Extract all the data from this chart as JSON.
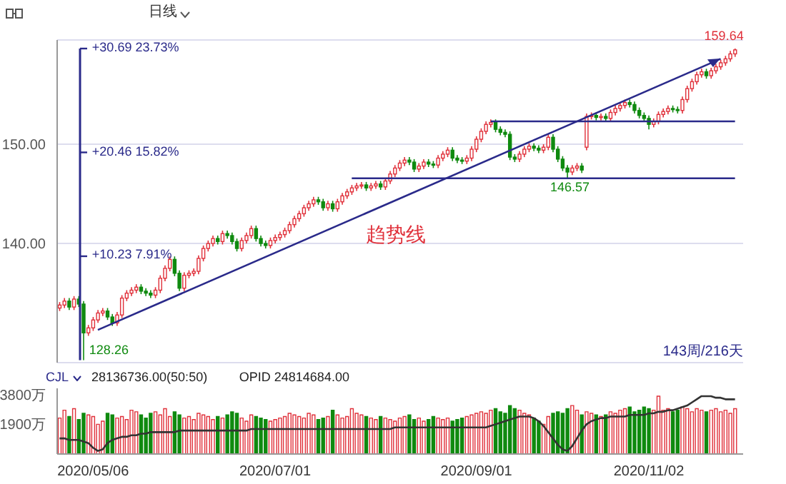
{
  "chart_data": [
    {
      "type": "candlestick",
      "title": "日线",
      "categories": [
        null,
        null,
        null,
        null,
        null,
        null,
        null,
        "2020/05/06",
        null,
        null,
        null,
        null,
        null,
        null,
        null,
        null,
        null,
        null,
        null,
        null,
        null,
        null,
        null,
        null,
        null,
        null,
        null,
        null,
        null,
        null,
        null,
        null,
        null,
        null,
        null,
        null,
        null,
        null,
        null,
        null,
        null,
        null,
        null,
        null,
        null,
        "2020/07/01",
        null,
        null,
        null,
        null,
        null,
        null,
        null,
        null,
        null,
        null,
        null,
        null,
        null,
        null,
        null,
        null,
        null,
        null,
        null,
        null,
        null,
        null,
        null,
        null,
        null,
        null,
        null,
        null,
        null,
        null,
        null,
        null,
        null,
        null,
        null,
        null,
        null,
        null,
        null,
        null,
        null,
        "2020/09/01",
        null,
        null,
        null,
        null,
        null,
        null,
        null,
        null,
        null,
        null,
        null,
        null,
        null,
        null,
        null,
        null,
        null,
        null,
        null,
        null,
        null,
        null,
        null,
        null,
        null,
        null,
        null,
        null,
        null,
        null,
        null,
        null,
        null,
        null,
        null,
        "2020/11/02",
        null,
        null,
        null,
        null,
        null,
        null,
        null,
        null,
        null,
        null,
        null,
        null,
        null,
        null,
        null,
        null,
        null,
        null
      ],
      "ohlc": [
        [
          133.5,
          134.1,
          133.2,
          133.8
        ],
        [
          133.8,
          134.5,
          133.5,
          134.2
        ],
        [
          134.2,
          134.5,
          133.3,
          133.6
        ],
        [
          133.6,
          134.7,
          133.3,
          134.4
        ],
        [
          134.4,
          134.7,
          133.6,
          133.9
        ],
        [
          133.9,
          134.2,
          128.26,
          131.0
        ],
        [
          131.0,
          131.8,
          130.7,
          131.5
        ],
        [
          131.5,
          132.6,
          131.2,
          132.3
        ],
        [
          132.3,
          133.3,
          132.0,
          133.0
        ],
        [
          133.0,
          133.5,
          132.7,
          133.2
        ],
        [
          133.2,
          133.5,
          132.3,
          132.6
        ],
        [
          132.6,
          132.9,
          131.7,
          132.0
        ],
        [
          132.0,
          133.1,
          131.7,
          132.8
        ],
        [
          132.8,
          134.8,
          132.5,
          134.5
        ],
        [
          134.5,
          135.3,
          134.2,
          135.0
        ],
        [
          135.0,
          135.6,
          134.7,
          135.3
        ],
        [
          135.3,
          135.9,
          135.0,
          135.6
        ],
        [
          135.6,
          135.9,
          134.9,
          135.2
        ],
        [
          135.2,
          135.5,
          134.7,
          135.0
        ],
        [
          135.0,
          135.3,
          134.5,
          134.8
        ],
        [
          134.8,
          135.6,
          134.5,
          135.3
        ],
        [
          135.3,
          136.8,
          135.0,
          136.5
        ],
        [
          136.5,
          137.8,
          136.2,
          137.5
        ],
        [
          137.5,
          138.7,
          137.2,
          138.4
        ],
        [
          138.4,
          138.7,
          136.7,
          137.0
        ],
        [
          137.0,
          137.3,
          135.2,
          135.5
        ],
        [
          135.5,
          137.1,
          135.2,
          136.8
        ],
        [
          136.8,
          137.3,
          136.5,
          137.0
        ],
        [
          137.0,
          137.5,
          136.7,
          137.2
        ],
        [
          137.2,
          138.8,
          136.9,
          138.5
        ],
        [
          138.5,
          139.8,
          138.2,
          139.5
        ],
        [
          139.5,
          140.3,
          139.2,
          140.0
        ],
        [
          140.0,
          140.8,
          139.7,
          140.5
        ],
        [
          140.5,
          140.8,
          139.9,
          140.2
        ],
        [
          140.2,
          141.3,
          139.9,
          141.0
        ],
        [
          141.0,
          141.3,
          140.5,
          140.8
        ],
        [
          140.8,
          141.1,
          139.9,
          140.2
        ],
        [
          140.2,
          140.5,
          139.2,
          139.5
        ],
        [
          139.5,
          140.6,
          139.2,
          140.3
        ],
        [
          140.3,
          141.1,
          140.0,
          140.8
        ],
        [
          140.8,
          141.8,
          140.5,
          141.5
        ],
        [
          141.5,
          141.8,
          140.2,
          140.5
        ],
        [
          140.5,
          140.8,
          139.7,
          140.0
        ],
        [
          140.0,
          140.3,
          139.5,
          139.8
        ],
        [
          139.8,
          140.6,
          139.5,
          140.3
        ],
        [
          140.3,
          140.9,
          140.0,
          140.6
        ],
        [
          140.6,
          141.2,
          140.3,
          140.9
        ],
        [
          140.9,
          141.6,
          140.6,
          141.3
        ],
        [
          141.3,
          142.2,
          141.0,
          141.9
        ],
        [
          141.9,
          142.8,
          141.6,
          142.5
        ],
        [
          142.5,
          143.3,
          142.2,
          143.0
        ],
        [
          143.0,
          143.9,
          142.7,
          143.6
        ],
        [
          143.6,
          144.3,
          143.3,
          144.0
        ],
        [
          144.0,
          144.7,
          143.7,
          144.4
        ],
        [
          144.4,
          144.7,
          143.9,
          144.2
        ],
        [
          144.2,
          144.5,
          143.3,
          143.6
        ],
        [
          143.6,
          144.3,
          143.3,
          144.0
        ],
        [
          144.0,
          144.3,
          143.2,
          143.5
        ],
        [
          143.5,
          144.5,
          143.2,
          144.2
        ],
        [
          144.2,
          145.1,
          143.9,
          144.8
        ],
        [
          144.8,
          145.5,
          144.5,
          145.2
        ],
        [
          145.2,
          145.9,
          144.9,
          145.6
        ],
        [
          145.6,
          146.1,
          145.3,
          145.8
        ],
        [
          145.8,
          146.2,
          145.5,
          145.9
        ],
        [
          145.9,
          146.2,
          145.3,
          145.6
        ],
        [
          145.6,
          146.1,
          145.3,
          145.8
        ],
        [
          145.8,
          146.3,
          145.5,
          146.0
        ],
        [
          146.0,
          146.3,
          145.4,
          145.7
        ],
        [
          145.7,
          146.6,
          145.4,
          146.3
        ],
        [
          146.3,
          147.3,
          146.0,
          147.0
        ],
        [
          147.0,
          147.9,
          146.7,
          147.6
        ],
        [
          147.6,
          148.4,
          147.3,
          148.1
        ],
        [
          148.1,
          148.7,
          147.8,
          148.4
        ],
        [
          148.4,
          148.7,
          147.9,
          148.2
        ],
        [
          148.2,
          148.5,
          147.2,
          147.5
        ],
        [
          147.5,
          148.1,
          147.2,
          147.8
        ],
        [
          147.8,
          148.5,
          147.5,
          148.2
        ],
        [
          148.2,
          148.5,
          147.7,
          148.0
        ],
        [
          148.0,
          148.3,
          147.6,
          147.9
        ],
        [
          147.9,
          148.9,
          147.6,
          148.6
        ],
        [
          148.6,
          149.3,
          148.3,
          149.0
        ],
        [
          149.0,
          149.7,
          148.7,
          149.4
        ],
        [
          149.4,
          149.7,
          148.3,
          148.6
        ],
        [
          148.6,
          148.9,
          148.1,
          148.4
        ],
        [
          148.4,
          148.7,
          148.0,
          148.3
        ],
        [
          148.3,
          148.9,
          148.0,
          148.6
        ],
        [
          148.6,
          149.8,
          148.3,
          149.5
        ],
        [
          149.5,
          150.8,
          149.2,
          150.5
        ],
        [
          150.5,
          151.6,
          150.2,
          151.3
        ],
        [
          151.3,
          152.3,
          151.0,
          152.0
        ],
        [
          152.0,
          152.5,
          151.7,
          152.2
        ],
        [
          152.2,
          152.5,
          151.2,
          151.5
        ],
        [
          151.5,
          151.8,
          150.9,
          151.2
        ],
        [
          151.2,
          151.5,
          150.7,
          151.0
        ],
        [
          151.0,
          151.3,
          148.4,
          148.7
        ],
        [
          148.7,
          149.0,
          148.2,
          148.5
        ],
        [
          148.5,
          149.3,
          148.2,
          149.0
        ],
        [
          149.0,
          149.8,
          148.7,
          149.5
        ],
        [
          149.5,
          150.1,
          149.2,
          149.8
        ],
        [
          149.8,
          150.1,
          149.3,
          149.6
        ],
        [
          149.6,
          149.9,
          149.1,
          149.4
        ],
        [
          149.4,
          150.0,
          149.1,
          149.7
        ],
        [
          149.7,
          151.0,
          149.4,
          150.7
        ],
        [
          150.7,
          151.0,
          149.2,
          149.5
        ],
        [
          149.5,
          149.8,
          148.2,
          148.5
        ],
        [
          148.5,
          148.8,
          147.3,
          147.6
        ],
        [
          147.6,
          147.9,
          146.57,
          147.2
        ],
        [
          147.2,
          147.9,
          146.9,
          147.6
        ],
        [
          147.6,
          148.1,
          147.3,
          147.8
        ],
        [
          147.8,
          148.1,
          147.1,
          147.4
        ],
        [
          149.7,
          153.1,
          149.4,
          152.8
        ],
        [
          152.8,
          153.2,
          152.5,
          152.9
        ],
        [
          152.9,
          153.2,
          152.4,
          152.7
        ],
        [
          152.7,
          153.1,
          152.4,
          152.8
        ],
        [
          152.8,
          153.1,
          152.3,
          152.6
        ],
        [
          152.6,
          153.5,
          152.3,
          153.2
        ],
        [
          153.2,
          153.9,
          152.9,
          153.6
        ],
        [
          153.6,
          154.2,
          153.3,
          153.9
        ],
        [
          153.9,
          154.5,
          153.6,
          154.2
        ],
        [
          154.2,
          154.5,
          153.7,
          154.0
        ],
        [
          154.0,
          154.3,
          153.1,
          153.4
        ],
        [
          153.4,
          153.7,
          152.6,
          152.9
        ],
        [
          152.9,
          153.2,
          152.3,
          152.6
        ],
        [
          152.6,
          152.9,
          151.5,
          152.0
        ],
        [
          152.0,
          152.6,
          151.7,
          152.3
        ],
        [
          152.3,
          153.3,
          152.0,
          153.0
        ],
        [
          153.0,
          153.6,
          152.7,
          153.3
        ],
        [
          153.3,
          153.9,
          153.0,
          153.6
        ],
        [
          153.6,
          153.9,
          153.2,
          153.5
        ],
        [
          153.5,
          153.8,
          153.1,
          153.4
        ],
        [
          153.4,
          154.8,
          153.1,
          154.5
        ],
        [
          154.5,
          155.9,
          154.2,
          155.6
        ],
        [
          155.6,
          156.6,
          155.3,
          156.3
        ],
        [
          156.3,
          157.3,
          156.0,
          157.0
        ],
        [
          157.0,
          157.6,
          156.7,
          157.3
        ],
        [
          157.3,
          157.6,
          156.6,
          156.9
        ],
        [
          156.9,
          157.7,
          156.6,
          157.4
        ],
        [
          157.4,
          158.1,
          157.1,
          157.8
        ],
        [
          157.8,
          158.5,
          157.5,
          158.2
        ],
        [
          158.2,
          158.9,
          157.9,
          158.6
        ],
        [
          158.6,
          159.4,
          158.3,
          159.1
        ],
        [
          159.1,
          159.64,
          158.8,
          159.5
        ]
      ],
      "colors": [
        "#e0303a",
        "#e0303a",
        "#0f8a0f",
        "#e0303a",
        "#0f8a0f",
        "#0f8a0f",
        "#e0303a",
        "#e0303a",
        "#e0303a",
        "#e0303a",
        "#0f8a0f",
        "#0f8a0f",
        "#e0303a",
        "#e0303a",
        "#e0303a",
        "#e0303a",
        "#e0303a",
        "#0f8a0f",
        "#0f8a0f",
        "#0f8a0f",
        "#e0303a",
        "#e0303a",
        "#e0303a",
        "#e0303a",
        "#0f8a0f",
        "#0f8a0f",
        "#e0303a",
        "#e0303a",
        "#e0303a",
        "#e0303a",
        "#e0303a",
        "#e0303a",
        "#e0303a",
        "#0f8a0f",
        "#e0303a",
        "#0f8a0f",
        "#0f8a0f",
        "#0f8a0f",
        "#e0303a",
        "#e0303a",
        "#e0303a",
        "#0f8a0f",
        "#0f8a0f",
        "#0f8a0f",
        "#e0303a",
        "#e0303a",
        "#e0303a",
        "#e0303a",
        "#e0303a",
        "#e0303a",
        "#e0303a",
        "#e0303a",
        "#e0303a",
        "#e0303a",
        "#0f8a0f",
        "#0f8a0f",
        "#e0303a",
        "#0f8a0f",
        "#e0303a",
        "#e0303a",
        "#e0303a",
        "#e0303a",
        "#e0303a",
        "#e0303a",
        "#0f8a0f",
        "#e0303a",
        "#e0303a",
        "#0f8a0f",
        "#e0303a",
        "#e0303a",
        "#e0303a",
        "#e0303a",
        "#e0303a",
        "#0f8a0f",
        "#0f8a0f",
        "#e0303a",
        "#e0303a",
        "#0f8a0f",
        "#0f8a0f",
        "#e0303a",
        "#e0303a",
        "#e0303a",
        "#0f8a0f",
        "#0f8a0f",
        "#0f8a0f",
        "#e0303a",
        "#e0303a",
        "#e0303a",
        "#e0303a",
        "#e0303a",
        "#e0303a",
        "#0f8a0f",
        "#0f8a0f",
        "#0f8a0f",
        "#0f8a0f",
        "#0f8a0f",
        "#e0303a",
        "#e0303a",
        "#e0303a",
        "#0f8a0f",
        "#0f8a0f",
        "#e0303a",
        "#e0303a",
        "#0f8a0f",
        "#0f8a0f",
        "#0f8a0f",
        "#0f8a0f",
        "#e0303a",
        "#e0303a",
        "#0f8a0f",
        "#e0303a",
        "#e0303a",
        "#0f8a0f",
        "#e0303a",
        "#0f8a0f",
        "#e0303a",
        "#e0303a",
        "#e0303a",
        "#e0303a",
        "#0f8a0f",
        "#0f8a0f",
        "#0f8a0f",
        "#0f8a0f",
        "#0f8a0f",
        "#e0303a",
        "#e0303a",
        "#e0303a",
        "#e0303a",
        "#0f8a0f",
        "#0f8a0f",
        "#e0303a",
        "#e0303a",
        "#e0303a",
        "#e0303a",
        "#e0303a",
        "#0f8a0f",
        "#e0303a",
        "#e0303a",
        "#e0303a",
        "#e0303a",
        "#e0303a",
        "#e0303a"
      ],
      "series": [
        {
          "type": "line",
          "color": "#2a2a8a",
          "values": [
            null,
            null,
            null,
            null,
            null,
            null,
            null,
            null,
            131.3,
            null,
            null,
            null,
            null,
            null,
            null,
            null,
            null,
            null,
            null,
            null,
            null,
            null,
            null,
            null,
            null,
            null,
            null,
            null,
            null,
            null,
            null,
            null,
            null,
            null,
            null,
            null,
            null,
            null,
            null,
            null,
            null,
            null,
            null,
            null,
            null,
            null,
            null,
            null,
            null,
            null,
            null,
            null,
            null,
            null,
            null,
            null,
            null,
            null,
            null,
            null,
            null,
            null,
            null,
            null,
            null,
            null,
            null,
            null,
            null,
            null,
            null,
            null,
            null,
            null,
            null,
            null,
            null,
            null,
            null,
            null,
            null,
            null,
            null,
            null,
            null,
            null,
            null,
            null,
            null,
            null,
            null,
            null,
            null,
            null,
            null,
            null,
            null,
            null,
            null,
            null,
            null,
            null,
            null,
            null,
            null,
            null,
            null,
            null,
            null,
            null,
            null,
            null,
            null,
            null,
            null,
            null,
            null,
            null,
            null,
            null,
            null,
            null,
            null,
            null,
            null,
            null,
            null,
            null,
            null,
            null,
            null,
            null,
            null,
            null,
            null,
            null,
            null,
            null,
            158.6,
            null,
            null,
            null
          ]
        },
        {
          "type": "line",
          "color": "#2a2a8a",
          "values": [
            null,
            null,
            null,
            null,
            null,
            null,
            null,
            null,
            null,
            null,
            null,
            null,
            null,
            null,
            null,
            null,
            null,
            null,
            null,
            null,
            null,
            null,
            null,
            null,
            null,
            null,
            null,
            null,
            null,
            null,
            null,
            null,
            null,
            null,
            null,
            null,
            null,
            null,
            null,
            null,
            null,
            null,
            null,
            null,
            null,
            null,
            null,
            null,
            null,
            null,
            null,
            null,
            null,
            null,
            null,
            null,
            null,
            null,
            null,
            null,
            null,
            146.57,
            null,
            null,
            null,
            null,
            null,
            null,
            null,
            null,
            null,
            null,
            null,
            null,
            null,
            null,
            null,
            null,
            null,
            null,
            null,
            null,
            null,
            null,
            null,
            null,
            null,
            null,
            null,
            null,
            null,
            null,
            null,
            null,
            null,
            null,
            null,
            null,
            null,
            null,
            null,
            null,
            null,
            null,
            null,
            null,
            null,
            null,
            null,
            null,
            null,
            null,
            null,
            null,
            null,
            null,
            null,
            null,
            null,
            null,
            null,
            null,
            null,
            null,
            null,
            null,
            null,
            null,
            null,
            null,
            null,
            null,
            null,
            null,
            null,
            null,
            null,
            null,
            null,
            null,
            null,
            146.57
          ]
        },
        {
          "type": "line",
          "color": "#2a2a8a",
          "values": [
            null,
            null,
            null,
            null,
            null,
            null,
            null,
            null,
            null,
            null,
            null,
            null,
            null,
            null,
            null,
            null,
            null,
            null,
            null,
            null,
            null,
            null,
            null,
            null,
            null,
            null,
            null,
            null,
            null,
            null,
            null,
            null,
            null,
            null,
            null,
            null,
            null,
            null,
            null,
            null,
            null,
            null,
            null,
            null,
            null,
            null,
            null,
            null,
            null,
            null,
            null,
            null,
            null,
            null,
            null,
            null,
            null,
            null,
            null,
            null,
            null,
            null,
            null,
            null,
            null,
            null,
            null,
            null,
            null,
            null,
            null,
            null,
            null,
            null,
            null,
            null,
            null,
            null,
            null,
            null,
            null,
            null,
            null,
            null,
            null,
            null,
            null,
            null,
            null,
            null,
            152.3,
            null,
            null,
            null,
            null,
            null,
            null,
            null,
            null,
            null,
            null,
            null,
            null,
            null,
            null,
            null,
            null,
            null,
            null,
            null,
            null,
            null,
            null,
            null,
            null,
            null,
            null,
            null,
            null,
            null,
            null,
            null,
            null,
            null,
            null,
            null,
            null,
            null,
            null,
            null,
            null,
            null,
            null,
            null,
            null,
            null,
            null,
            null,
            null,
            null,
            null,
            152.3
          ]
        }
      ],
      "ylim": [
        128,
        160.5
      ],
      "yticks": [
        {
          "value": 140,
          "label": "140.00"
        },
        {
          "value": 150,
          "label": "150.00"
        }
      ],
      "grid": "y",
      "tick_labels": "y",
      "annotations": [
        "+30.69  23.73%",
        "+20.46  15.82%",
        "+10.23  7.91%",
        "128.26",
        "146.57",
        "159.64",
        "趋势线",
        "143周/216天"
      ]
    },
    {
      "type": "bar",
      "categories": [
        null,
        null,
        null,
        null,
        null,
        null,
        null,
        "2020/05/06",
        null,
        null,
        null,
        null,
        null,
        null,
        null,
        null,
        null,
        null,
        null,
        null,
        null,
        null,
        null,
        null,
        null,
        null,
        null,
        null,
        null,
        null,
        null,
        null,
        null,
        null,
        null,
        null,
        null,
        null,
        null,
        null,
        null,
        null,
        null,
        null,
        null,
        "2020/07/01",
        null,
        null,
        null,
        null,
        null,
        null,
        null,
        null,
        null,
        null,
        null,
        null,
        null,
        null,
        null,
        null,
        null,
        null,
        null,
        null,
        null,
        null,
        null,
        null,
        null,
        null,
        null,
        null,
        null,
        null,
        null,
        null,
        null,
        null,
        null,
        null,
        null,
        null,
        null,
        null,
        null,
        "2020/09/01",
        null,
        null,
        null,
        null,
        null,
        null,
        null,
        null,
        null,
        null,
        null,
        null,
        null,
        null,
        null,
        null,
        null,
        null,
        null,
        null,
        null,
        null,
        null,
        null,
        null,
        null,
        null,
        null,
        null,
        null,
        null,
        null,
        null,
        null,
        null,
        "2020/11/02",
        null,
        null,
        null,
        null,
        null,
        null,
        null,
        null,
        null,
        null,
        null,
        null,
        null,
        null,
        null,
        null,
        null,
        null
      ],
      "series": [
        {
          "type": "bar",
          "values": [
            2300,
            2800,
            2400,
            2900,
            2200,
            2600,
            2500,
            2400,
            1900,
            2100,
            2600,
            2500,
            2300,
            2400,
            2200,
            2800,
            2700,
            2500,
            2300,
            2600,
            2700,
            2500,
            2900,
            2400,
            2700,
            2500,
            2300,
            2400,
            2200,
            2600,
            2500,
            2400,
            2200,
            2400,
            2300,
            2500,
            2700,
            2600,
            2300,
            2100,
            2500,
            2400,
            2300,
            2200,
            2100,
            2200,
            2300,
            2400,
            2600,
            2500,
            2400,
            2300,
            2600,
            2500,
            2200,
            2300,
            2400,
            2800,
            2500,
            2300,
            2400,
            2900,
            2600,
            2500,
            2400,
            2300,
            2200,
            2400,
            2300,
            2200,
            2100,
            2300,
            2400,
            2500,
            2200,
            2300,
            2100,
            2200,
            2400,
            2300,
            2200,
            2300,
            2100,
            2200,
            2300,
            2400,
            2500,
            2600,
            2700,
            2600,
            2800,
            2900,
            2700,
            2600,
            3100,
            2900,
            2800,
            2600,
            2500,
            2300,
            2100,
            1900,
            2400,
            2600,
            2700,
            2600,
            2900,
            3100,
            2800,
            2500,
            2700,
            2600,
            2500,
            2400,
            2500,
            2700,
            2600,
            2800,
            2900,
            3000,
            2700,
            2800,
            3000,
            2900,
            2800,
            3700,
            2800,
            2900,
            2700,
            2800,
            3000,
            2900,
            2700,
            2900,
            2800,
            2700,
            2800,
            2900,
            2700,
            2800,
            2600,
            2900
          ],
          "colors": [
            "#e0303a",
            "#e0303a",
            "#0f8a0f",
            "#e0303a",
            "#0f8a0f",
            "#0f8a0f",
            "#e0303a",
            "#e0303a",
            "#e0303a",
            "#e0303a",
            "#0f8a0f",
            "#0f8a0f",
            "#e0303a",
            "#e0303a",
            "#e0303a",
            "#e0303a",
            "#e0303a",
            "#0f8a0f",
            "#0f8a0f",
            "#0f8a0f",
            "#e0303a",
            "#e0303a",
            "#e0303a",
            "#e0303a",
            "#0f8a0f",
            "#0f8a0f",
            "#e0303a",
            "#e0303a",
            "#e0303a",
            "#e0303a",
            "#e0303a",
            "#e0303a",
            "#e0303a",
            "#0f8a0f",
            "#e0303a",
            "#0f8a0f",
            "#0f8a0f",
            "#0f8a0f",
            "#e0303a",
            "#e0303a",
            "#e0303a",
            "#0f8a0f",
            "#0f8a0f",
            "#0f8a0f",
            "#e0303a",
            "#e0303a",
            "#e0303a",
            "#e0303a",
            "#e0303a",
            "#e0303a",
            "#e0303a",
            "#e0303a",
            "#e0303a",
            "#e0303a",
            "#0f8a0f",
            "#0f8a0f",
            "#e0303a",
            "#0f8a0f",
            "#e0303a",
            "#e0303a",
            "#e0303a",
            "#e0303a",
            "#e0303a",
            "#e0303a",
            "#0f8a0f",
            "#e0303a",
            "#e0303a",
            "#0f8a0f",
            "#e0303a",
            "#e0303a",
            "#e0303a",
            "#e0303a",
            "#e0303a",
            "#0f8a0f",
            "#0f8a0f",
            "#e0303a",
            "#e0303a",
            "#0f8a0f",
            "#0f8a0f",
            "#e0303a",
            "#e0303a",
            "#e0303a",
            "#0f8a0f",
            "#0f8a0f",
            "#0f8a0f",
            "#e0303a",
            "#e0303a",
            "#e0303a",
            "#e0303a",
            "#e0303a",
            "#e0303a",
            "#0f8a0f",
            "#0f8a0f",
            "#0f8a0f",
            "#0f8a0f",
            "#0f8a0f",
            "#e0303a",
            "#e0303a",
            "#e0303a",
            "#0f8a0f",
            "#0f8a0f",
            "#e0303a",
            "#e0303a",
            "#0f8a0f",
            "#0f8a0f",
            "#0f8a0f",
            "#0f8a0f",
            "#e0303a",
            "#e0303a",
            "#0f8a0f",
            "#e0303a",
            "#e0303a",
            "#0f8a0f",
            "#e0303a",
            "#0f8a0f",
            "#e0303a",
            "#e0303a",
            "#e0303a",
            "#e0303a",
            "#0f8a0f",
            "#0f8a0f",
            "#0f8a0f",
            "#0f8a0f",
            "#0f8a0f",
            "#e0303a",
            "#e0303a",
            "#e0303a",
            "#e0303a",
            "#0f8a0f",
            "#0f8a0f",
            "#e0303a",
            "#e0303a",
            "#e0303a",
            "#e0303a",
            "#e0303a",
            "#0f8a0f",
            "#e0303a",
            "#e0303a",
            "#e0303a",
            "#e0303a",
            "#e0303a",
            "#e0303a"
          ]
        },
        {
          "type": "line",
          "color": "#333333",
          "values": [
            1000,
            1000,
            900,
            900,
            900,
            800,
            700,
            400,
            200,
            300,
            700,
            900,
            1000,
            1100,
            1100,
            1200,
            1200,
            1300,
            1300,
            1400,
            1400,
            1400,
            1400,
            1400,
            1400,
            1500,
            1500,
            1500,
            1500,
            1500,
            1500,
            1500,
            1500,
            1500,
            1500,
            1500,
            1500,
            1500,
            1500,
            1500,
            1600,
            1600,
            1600,
            1600,
            1600,
            1600,
            1600,
            1600,
            1600,
            1600,
            1600,
            1600,
            1600,
            1600,
            1600,
            1600,
            1600,
            1600,
            1600,
            1600,
            1600,
            1600,
            1600,
            1600,
            1600,
            1600,
            1600,
            1600,
            1600,
            1600,
            1700,
            1700,
            1700,
            1700,
            1700,
            1700,
            1700,
            1700,
            1700,
            1700,
            1700,
            1700,
            1700,
            1700,
            1700,
            1700,
            1700,
            1700,
            1700,
            1700,
            1800,
            1900,
            2000,
            2100,
            2200,
            2300,
            2400,
            2400,
            2400,
            2300,
            2100,
            1800,
            1400,
            1000,
            600,
            300,
            200,
            500,
            1000,
            1500,
            1900,
            2100,
            2200,
            2300,
            2300,
            2400,
            2400,
            2400,
            2400,
            2500,
            2500,
            2500,
            2500,
            2600,
            2600,
            2700,
            2700,
            2800,
            2800,
            2900,
            3000,
            3100,
            3300,
            3500,
            3700,
            3700,
            3700,
            3600,
            3600,
            3500,
            3500,
            3500
          ]
        }
      ],
      "ylim": [
        0,
        4200
      ],
      "yticks": [
        {
          "value": 1900,
          "label": "1900万"
        },
        {
          "value": 3800,
          "label": "3800万"
        }
      ],
      "annotations": [
        "CJL",
        "28136736.00(50:50)",
        "OPID 24814684.00"
      ]
    }
  ]
}
